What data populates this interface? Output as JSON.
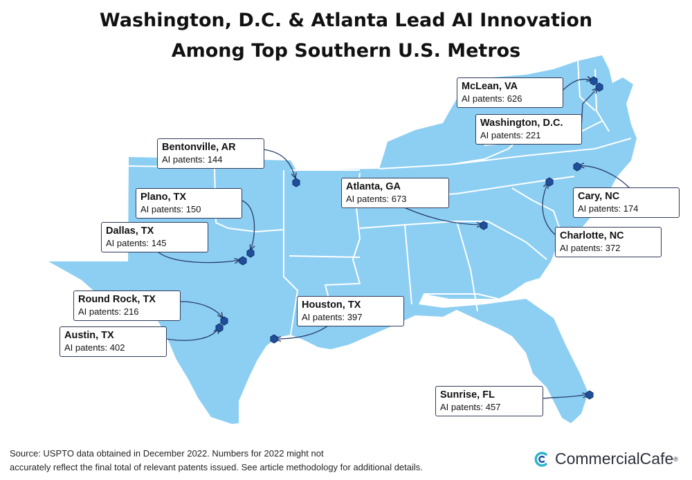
{
  "title": {
    "line1": "Washington, D.C. & Atlanta Lead AI Innovation",
    "line2": "Among Top Southern U.S. Metros"
  },
  "metros": [
    {
      "name": "McLean, VA",
      "patents": "AI patents: 626"
    },
    {
      "name": "Washington, D.C.",
      "patents": "AI patents: 221"
    },
    {
      "name": "Bentonville, AR",
      "patents": "AI patents: 144"
    },
    {
      "name": "Plano, TX",
      "patents": "AI patents: 150"
    },
    {
      "name": "Dallas, TX",
      "patents": "AI patents: 145"
    },
    {
      "name": "Atlanta, GA",
      "patents": "AI patents: 673"
    },
    {
      "name": "Cary, NC",
      "patents": "AI patents: 174"
    },
    {
      "name": "Charlotte, NC",
      "patents": "AI patents: 372"
    },
    {
      "name": "Round Rock, TX",
      "patents": "AI patents: 216"
    },
    {
      "name": "Austin, TX",
      "patents": "AI patents: 402"
    },
    {
      "name": "Houston, TX",
      "patents": "AI patents: 397"
    },
    {
      "name": "Sunrise, FL",
      "patents": "AI patents: 457"
    }
  ],
  "colors": {
    "land": "#8ccff3",
    "border": "#ffffff",
    "marker": "#1f4f9a",
    "connector": "#2a3d6b"
  },
  "footer": {
    "line1": "Source: USPTO data obtained in December 2022. Numbers for 2022 might not",
    "line2": "accurately reflect the final total of relevant patents issued. See article methodology for additional details."
  },
  "brand": {
    "name": "CommercialCafe",
    "mark": "®",
    "icon": "commercialcafe-logo-icon"
  }
}
